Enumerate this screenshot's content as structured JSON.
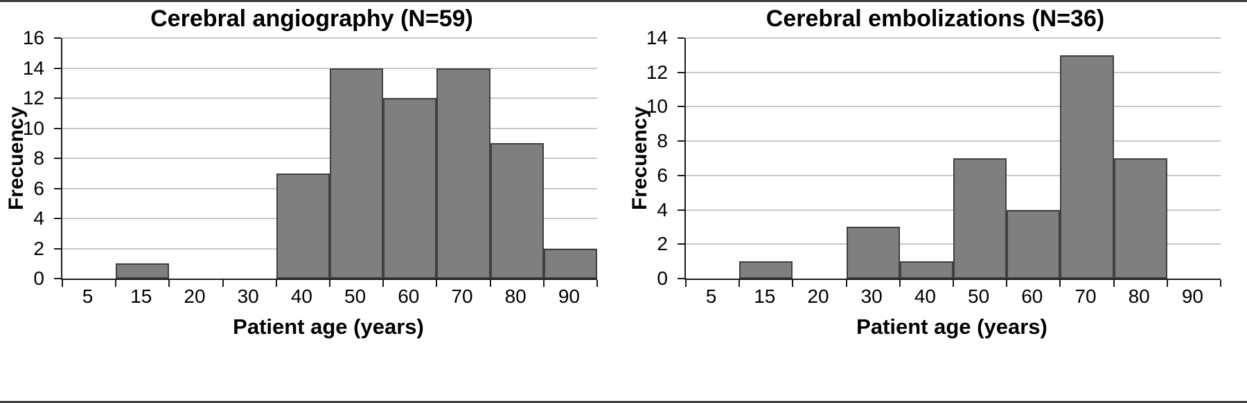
{
  "figure": {
    "background": "#ffffff",
    "border_color": "#3d3d3d"
  },
  "chart_data": [
    {
      "type": "bar",
      "title": "Cerebral angiography (N=59)",
      "xlabel": "Patient age (years)",
      "ylabel": "Frecuency",
      "n_total": 59,
      "categories": [
        "5",
        "15",
        "20",
        "30",
        "40",
        "50",
        "60",
        "70",
        "80",
        "90"
      ],
      "values": [
        0,
        1,
        0,
        0,
        7,
        14,
        12,
        14,
        9,
        2
      ],
      "ylim": [
        0,
        16
      ],
      "yticks": [
        0,
        2,
        4,
        6,
        8,
        10,
        12,
        14,
        16
      ],
      "grid": true,
      "legend": "none",
      "bar_fill": "#7f7f7f",
      "bar_border": "#404040",
      "gridline_color": "#c8c8c8"
    },
    {
      "type": "bar",
      "title": "Cerebral embolizations (N=36)",
      "xlabel": "Patient age (years)",
      "ylabel": "Frecuency",
      "n_total": 36,
      "categories": [
        "5",
        "15",
        "20",
        "30",
        "40",
        "50",
        "60",
        "70",
        "80",
        "90"
      ],
      "values": [
        0,
        1,
        0,
        3,
        1,
        7,
        4,
        13,
        7,
        0
      ],
      "ylim": [
        0,
        14
      ],
      "yticks": [
        0,
        2,
        4,
        6,
        8,
        10,
        12,
        14
      ],
      "grid": true,
      "legend": "none",
      "bar_fill": "#7f7f7f",
      "bar_border": "#404040",
      "gridline_color": "#c8c8c8"
    }
  ]
}
